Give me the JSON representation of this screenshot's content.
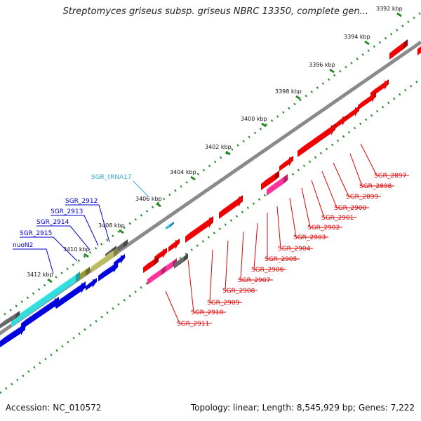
{
  "title": "Streptomyces griseus subsp. griseus NBRC 13350, complete gen...",
  "accession": "Accession: NC_010572",
  "topology": "Topology: linear; Length: 8,545,929 bp; Genes: 7,222",
  "colors": {
    "backbone": "#8a8a8a",
    "forward_gene": "#ee0000",
    "reverse_gene": "#0000dd",
    "rna_gene": "#ff3399",
    "cyan_gene": "#33dddd",
    "olive_gene": "#999933",
    "khaki_gene": "#bbbb66",
    "gray_gene": "#666666",
    "dotted_ring": "#2a8a2a",
    "label_red": "#dd0000",
    "label_blue": "#0000cc",
    "label_trna": "#33aadd"
  },
  "ticks": [
    "3392 kbp",
    "3394 kbp",
    "3396 kbp",
    "3398 kbp",
    "3400 kbp",
    "3402 kbp",
    "3404 kbp",
    "3406 kbp",
    "3408 kbp",
    "3410 kbp",
    "3412 kbp"
  ],
  "labels_right": [
    "SGR_2897",
    "SGR_2898",
    "SGR_2899",
    "SGR_2900",
    "SGR_2901",
    "SGR_2902",
    "SGR_2903",
    "SGR_2904",
    "SGR_2905",
    "SGR_2906",
    "SGR_2907",
    "SGR_2908",
    "SGR_2909",
    "SGR_2910",
    "SGR_2911"
  ],
  "labels_left": [
    "SGR_2912",
    "SGR_2913",
    "SGR_2914",
    "SGR_2915",
    "nuoN2"
  ],
  "label_trna": "SGR_tRNA17"
}
